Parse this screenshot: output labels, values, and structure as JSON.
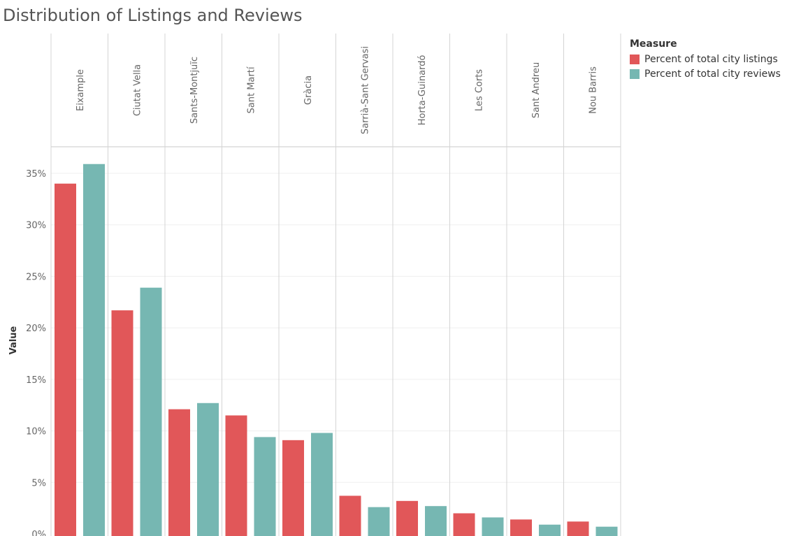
{
  "chart_data": {
    "type": "bar",
    "title": "Distribution of Listings and Reviews",
    "xlabel": "",
    "ylabel": "Value",
    "ylim": [
      0,
      36
    ],
    "yticks": [
      0,
      5,
      10,
      15,
      20,
      25,
      30,
      35
    ],
    "ytick_labels": [
      "0%",
      "5%",
      "10%",
      "15%",
      "20%",
      "25%",
      "30%",
      "35%"
    ],
    "categories": [
      "Eixample",
      "Ciutat Vella",
      "Sants-Montjuïc",
      "Sant Martí",
      "Gràcia",
      "Sarrià-Sant Gervasi",
      "Horta-Guinardó",
      "Les Corts",
      "Sant Andreu",
      "Nou Barris"
    ],
    "legend_title": "Measure",
    "legend_position": "top-right",
    "series": [
      {
        "name": "Percent of total city listings",
        "color": "#e15759",
        "values": [
          34.0,
          21.7,
          12.1,
          11.5,
          9.1,
          3.7,
          3.2,
          2.0,
          1.4,
          1.2
        ]
      },
      {
        "name": "Percent of total city reviews",
        "color": "#76b7b2",
        "values": [
          35.9,
          23.9,
          12.7,
          9.4,
          9.8,
          2.6,
          2.7,
          1.6,
          0.9,
          0.7
        ]
      }
    ]
  }
}
